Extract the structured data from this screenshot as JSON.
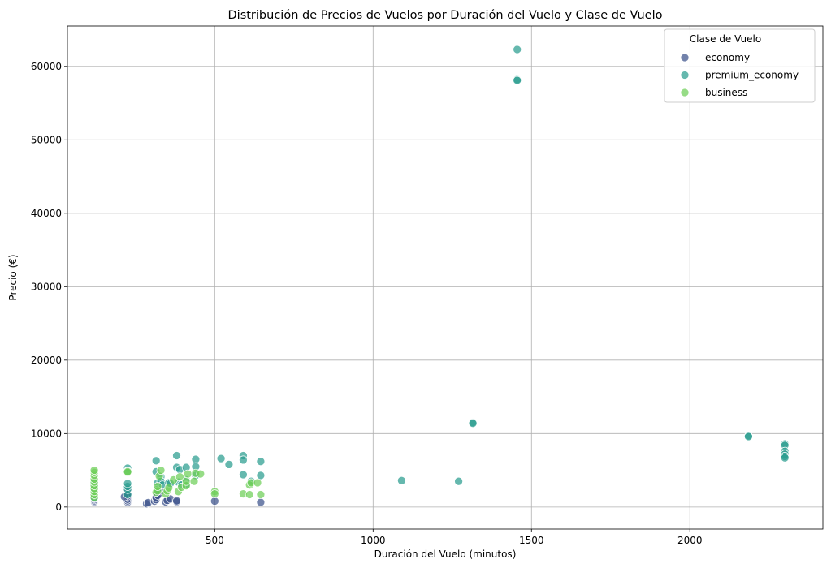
{
  "chart_data": {
    "type": "scatter",
    "title": "Distribución de Precios de Vuelos por Duración del Vuelo y Clase de Vuelo",
    "xlabel": "Duración del Vuelo (minutos)",
    "ylabel": "Precio (€)",
    "xlim": [
      35,
      2420
    ],
    "ylim": [
      -3000,
      65500
    ],
    "xticks": [
      500,
      1000,
      1500,
      2000
    ],
    "yticks": [
      0,
      10000,
      20000,
      30000,
      40000,
      50000,
      60000
    ],
    "grid": true,
    "legend": {
      "title": "Clase de Vuelo",
      "placement": "top-right"
    },
    "series": [
      {
        "name": "economy",
        "color": "#3b528b",
        "points": [
          [
            120,
            700
          ],
          [
            120,
            850
          ],
          [
            120,
            1000
          ],
          [
            120,
            1150
          ],
          [
            225,
            650
          ],
          [
            225,
            850
          ],
          [
            225,
            1050
          ],
          [
            225,
            1300
          ],
          [
            225,
            1500
          ],
          [
            225,
            1800
          ],
          [
            225,
            2300
          ],
          [
            215,
            1400
          ],
          [
            285,
            450
          ],
          [
            290,
            600
          ],
          [
            310,
            800
          ],
          [
            315,
            1000
          ],
          [
            315,
            1300
          ],
          [
            320,
            1600
          ],
          [
            325,
            1900
          ],
          [
            330,
            2200
          ],
          [
            345,
            700
          ],
          [
            350,
            900
          ],
          [
            360,
            1100
          ],
          [
            380,
            700
          ],
          [
            380,
            850
          ],
          [
            500,
            800
          ],
          [
            645,
            650
          ]
        ]
      },
      {
        "name": "premium_economy",
        "color": "#2a9d8f",
        "points": [
          [
            120,
            1200
          ],
          [
            120,
            1600
          ],
          [
            120,
            2000
          ],
          [
            120,
            2400
          ],
          [
            120,
            2800
          ],
          [
            120,
            3300
          ],
          [
            225,
            1700
          ],
          [
            225,
            2400
          ],
          [
            225,
            2800
          ],
          [
            225,
            3200
          ],
          [
            225,
            5300
          ],
          [
            225,
            4900
          ],
          [
            315,
            6300
          ],
          [
            315,
            4800
          ],
          [
            320,
            3300
          ],
          [
            320,
            2400
          ],
          [
            330,
            4100
          ],
          [
            330,
            3500
          ],
          [
            335,
            3000
          ],
          [
            355,
            3300
          ],
          [
            360,
            3200
          ],
          [
            380,
            7000
          ],
          [
            380,
            5400
          ],
          [
            385,
            3400
          ],
          [
            390,
            5100
          ],
          [
            395,
            3000
          ],
          [
            410,
            5400
          ],
          [
            410,
            3700
          ],
          [
            410,
            3000
          ],
          [
            440,
            6500
          ],
          [
            440,
            5500
          ],
          [
            440,
            4300
          ],
          [
            520,
            6600
          ],
          [
            545,
            5800
          ],
          [
            590,
            7000
          ],
          [
            590,
            6400
          ],
          [
            590,
            4400
          ],
          [
            615,
            3500
          ],
          [
            645,
            6200
          ],
          [
            645,
            4300
          ],
          [
            1090,
            3600
          ],
          [
            1270,
            3500
          ],
          [
            1315,
            11500
          ],
          [
            1315,
            11400
          ],
          [
            1455,
            62300
          ],
          [
            1455,
            58200
          ],
          [
            1455,
            58100
          ],
          [
            2185,
            9700
          ],
          [
            2185,
            9600
          ],
          [
            2300,
            8600
          ],
          [
            2300,
            8400
          ],
          [
            2300,
            7600
          ],
          [
            2300,
            7200
          ],
          [
            2300,
            6900
          ],
          [
            2300,
            6700
          ]
        ]
      },
      {
        "name": "business",
        "color": "#6ece58",
        "points": [
          [
            120,
            1300
          ],
          [
            120,
            1700
          ],
          [
            120,
            2100
          ],
          [
            120,
            2500
          ],
          [
            120,
            2900
          ],
          [
            120,
            3400
          ],
          [
            120,
            3800
          ],
          [
            120,
            4300
          ],
          [
            120,
            4700
          ],
          [
            120,
            5000
          ],
          [
            225,
            4700
          ],
          [
            225,
            4800
          ],
          [
            315,
            2000
          ],
          [
            320,
            2200
          ],
          [
            320,
            2800
          ],
          [
            325,
            4200
          ],
          [
            330,
            5000
          ],
          [
            345,
            1800
          ],
          [
            350,
            2200
          ],
          [
            355,
            2600
          ],
          [
            370,
            3700
          ],
          [
            385,
            2100
          ],
          [
            390,
            4100
          ],
          [
            395,
            2700
          ],
          [
            410,
            2900
          ],
          [
            410,
            3500
          ],
          [
            415,
            4500
          ],
          [
            435,
            3500
          ],
          [
            440,
            4600
          ],
          [
            455,
            4500
          ],
          [
            500,
            2100
          ],
          [
            500,
            1800
          ],
          [
            590,
            1800
          ],
          [
            610,
            1700
          ],
          [
            610,
            3000
          ],
          [
            615,
            3300
          ],
          [
            635,
            3300
          ],
          [
            645,
            1700
          ]
        ]
      }
    ]
  }
}
